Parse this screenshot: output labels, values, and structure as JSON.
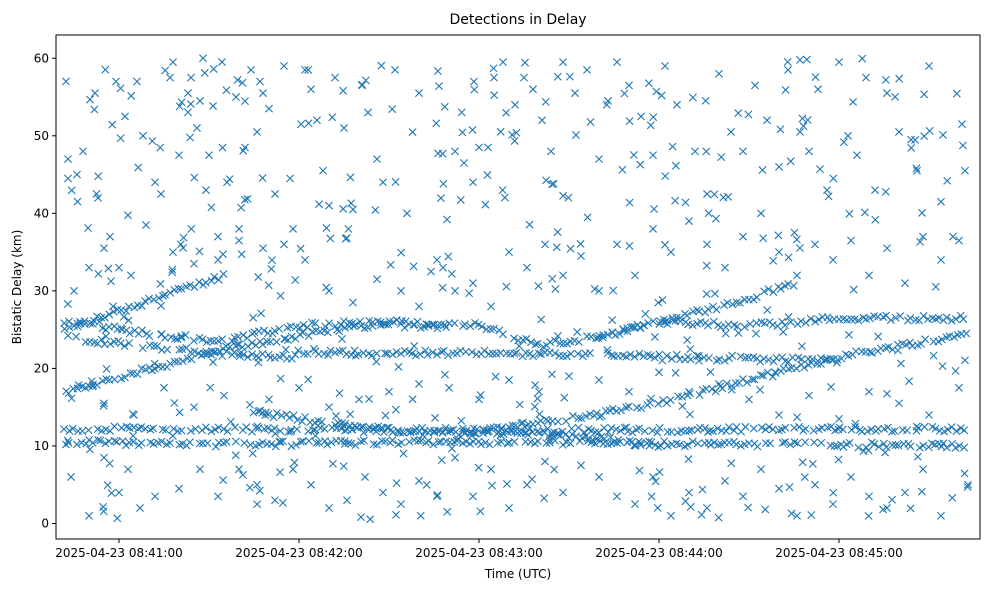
{
  "chart_data": {
    "type": "scatter",
    "title": "Detections in Delay",
    "xlabel": "Time (UTC)",
    "ylabel": "Bistatic Delay (km)",
    "marker": "x",
    "color": "#1f77b4",
    "grid": false,
    "x_tick_labels": [
      "2025-04-23 08:41:00",
      "2025-04-23 08:42:00",
      "2025-04-23 08:43:00",
      "2025-04-23 08:44:00",
      "2025-04-23 08:45:00"
    ],
    "y_tick_labels": [
      "0",
      "10",
      "20",
      "30",
      "40",
      "50",
      "60"
    ],
    "xlim": [
      "2025-04-23 08:40:39",
      "2025-04-23 08:45:47"
    ],
    "ylim": [
      -2,
      63
    ],
    "x_data_range": [
      "2025-04-23 08:40:42",
      "2025-04-23 08:45:43"
    ],
    "tracks": [
      {
        "description": "rising track",
        "points": [
          [
            "2025-04-23 08:40:42",
            25.0
          ],
          [
            "2025-04-23 08:41:35",
            32.0
          ]
        ]
      },
      {
        "description": "rising track",
        "points": [
          [
            "2025-04-23 08:40:42",
            17.0
          ],
          [
            "2025-04-23 08:41:35",
            22.5
          ],
          [
            "2025-04-23 08:42:20",
            25.5
          ],
          [
            "2025-04-23 08:42:50",
            25.5
          ]
        ]
      },
      {
        "description": "rising track",
        "points": [
          [
            "2025-04-23 08:42:55",
            11.7
          ],
          [
            "2025-04-23 08:43:30",
            13.5
          ],
          [
            "2025-04-23 08:44:00",
            15.5
          ],
          [
            "2025-04-23 08:44:30",
            18.5
          ],
          [
            "2025-04-23 08:45:00",
            21.5
          ],
          [
            "2025-04-23 08:45:43",
            24.5
          ]
        ]
      },
      {
        "description": "descending track",
        "points": [
          [
            "2025-04-23 08:40:42",
            24.0
          ],
          [
            "2025-04-23 08:41:30",
            22.0
          ],
          [
            "2025-04-23 08:42:00",
            21.5
          ]
        ]
      },
      {
        "description": "descending track",
        "points": [
          [
            "2025-04-23 08:41:42",
            14.5
          ],
          [
            "2025-04-23 08:42:10",
            13.0
          ],
          [
            "2025-04-23 08:42:40",
            11.7
          ],
          [
            "2025-04-23 08:43:15",
            11.7
          ],
          [
            "2025-04-23 08:43:40",
            11.0
          ],
          [
            "2025-04-23 08:44:00",
            10.0
          ]
        ]
      },
      {
        "description": "wavy band",
        "points": [
          [
            "2025-04-23 08:40:42",
            26.0
          ],
          [
            "2025-04-23 08:41:10",
            24.5
          ],
          [
            "2025-04-23 08:41:35",
            23.5
          ],
          [
            "2025-04-23 08:42:00",
            25.5
          ],
          [
            "2025-04-23 08:42:30",
            26.0
          ],
          [
            "2025-04-23 08:43:00",
            25.5
          ],
          [
            "2025-04-23 08:43:20",
            23.0
          ],
          [
            "2025-04-23 08:43:40",
            24.0
          ],
          [
            "2025-04-23 08:44:00",
            26.0
          ],
          [
            "2025-04-23 08:44:30",
            25.5
          ],
          [
            "2025-04-23 08:45:00",
            26.5
          ],
          [
            "2025-04-23 08:45:43",
            26.5
          ]
        ]
      },
      {
        "description": "rising track",
        "points": [
          [
            "2025-04-23 08:43:40",
            24.0
          ],
          [
            "2025-04-23 08:44:00",
            26.0
          ],
          [
            "2025-04-23 08:44:30",
            29.0
          ],
          [
            "2025-04-23 08:44:45",
            31.0
          ]
        ]
      },
      {
        "description": "band near 12 km",
        "points": [
          [
            "2025-04-23 08:40:42",
            12.2
          ],
          [
            "2025-04-23 08:41:30",
            12.2
          ],
          [
            "2025-04-23 08:43:00",
            12.0
          ],
          [
            "2025-04-23 08:45:43",
            12.2
          ]
        ]
      },
      {
        "description": "band near 10.5 km",
        "points": [
          [
            "2025-04-23 08:40:42",
            10.5
          ],
          [
            "2025-04-23 08:41:30",
            10.2
          ],
          [
            "2025-04-23 08:43:00",
            10.5
          ],
          [
            "2025-04-23 08:45:43",
            10.0
          ]
        ]
      },
      {
        "description": "band near 22 km",
        "points": [
          [
            "2025-04-23 08:42:00",
            22.0
          ],
          [
            "2025-04-23 08:43:00",
            22.0
          ],
          [
            "2025-04-23 08:44:00",
            21.5
          ],
          [
            "2025-04-23 08:45:00",
            21.0
          ]
        ]
      }
    ],
    "scattered_points": [
      [
        "2025-04-23 08:40:43",
        47
      ],
      [
        "2025-04-23 08:40:43",
        44.5
      ],
      [
        "2025-04-23 08:40:46",
        45
      ],
      [
        "2025-04-23 08:40:48",
        48
      ],
      [
        "2025-04-23 08:40:52",
        55.5
      ],
      [
        "2025-04-23 08:40:53",
        42
      ],
      [
        "2025-04-23 08:40:55",
        35.5
      ],
      [
        "2025-04-23 08:40:57",
        37
      ],
      [
        "2025-04-23 08:40:59",
        57
      ],
      [
        "2025-04-23 08:41:00",
        33
      ],
      [
        "2025-04-23 08:41:02",
        52.5
      ],
      [
        "2025-04-23 08:41:06",
        57
      ],
      [
        "2025-04-23 08:41:08",
        50
      ],
      [
        "2025-04-23 08:41:09",
        38.5
      ],
      [
        "2025-04-23 08:41:12",
        44
      ],
      [
        "2025-04-23 08:41:14",
        42.5
      ],
      [
        "2025-04-23 08:41:17",
        57.5
      ],
      [
        "2025-04-23 08:41:18",
        59.5
      ],
      [
        "2025-04-23 08:41:20",
        47.5
      ],
      [
        "2025-04-23 08:41:23",
        55.5
      ],
      [
        "2025-04-23 08:41:24",
        57.5
      ],
      [
        "2025-04-23 08:41:26",
        51
      ],
      [
        "2025-04-23 08:41:27",
        54.5
      ],
      [
        "2025-04-23 08:41:28",
        60
      ],
      [
        "2025-04-23 08:41:29",
        43
      ],
      [
        "2025-04-23 08:41:30",
        47.5
      ],
      [
        "2025-04-23 08:41:33",
        37
      ],
      [
        "2025-04-23 08:41:36",
        44
      ],
      [
        "2025-04-23 08:41:39",
        55
      ],
      [
        "2025-04-23 08:41:40",
        36.5
      ],
      [
        "2025-04-23 08:41:42",
        48.5
      ],
      [
        "2025-04-23 08:41:44",
        58.5
      ],
      [
        "2025-04-23 08:41:46",
        50.5
      ],
      [
        "2025-04-23 08:41:47",
        57
      ],
      [
        "2025-04-23 08:41:48",
        55.5
      ],
      [
        "2025-04-23 08:41:50",
        53.5
      ],
      [
        "2025-04-23 08:41:52",
        42.5
      ],
      [
        "2025-04-23 08:41:55",
        59
      ],
      [
        "2025-04-23 08:41:57",
        44.5
      ],
      [
        "2025-04-23 08:41:58",
        38
      ],
      [
        "2025-04-23 08:42:02",
        58.5
      ],
      [
        "2025-04-23 08:42:04",
        56
      ],
      [
        "2025-04-23 08:42:06",
        52
      ],
      [
        "2025-04-23 08:42:08",
        45.5
      ],
      [
        "2025-04-23 08:42:10",
        41
      ],
      [
        "2025-04-23 08:42:12",
        57.5
      ],
      [
        "2025-04-23 08:42:15",
        51
      ],
      [
        "2025-04-23 08:42:18",
        40.5
      ],
      [
        "2025-04-23 08:42:21",
        56.5
      ],
      [
        "2025-04-23 08:42:23",
        53
      ],
      [
        "2025-04-23 08:42:26",
        47
      ],
      [
        "2025-04-23 08:42:28",
        44
      ],
      [
        "2025-04-23 08:42:32",
        58.5
      ],
      [
        "2025-04-23 08:42:36",
        40
      ],
      [
        "2025-04-23 08:42:40",
        55.5
      ],
      [
        "2025-04-23 08:42:44",
        32.5
      ],
      [
        "2025-04-23 08:42:48",
        33
      ],
      [
        "2025-04-23 08:42:52",
        48
      ],
      [
        "2025-04-23 08:42:55",
        46.5
      ],
      [
        "2025-04-23 08:42:58",
        44
      ],
      [
        "2025-04-23 08:43:00",
        48.5
      ],
      [
        "2025-04-23 08:43:03",
        48.5
      ],
      [
        "2025-04-23 08:43:05",
        57.5
      ],
      [
        "2025-04-23 08:43:08",
        59.5
      ],
      [
        "2025-04-23 08:43:12",
        54
      ],
      [
        "2025-04-23 08:43:15",
        57.5
      ],
      [
        "2025-04-23 08:43:18",
        56
      ],
      [
        "2025-04-23 08:43:21",
        52
      ],
      [
        "2025-04-23 08:43:24",
        48
      ],
      [
        "2025-04-23 08:43:28",
        59.5
      ],
      [
        "2025-04-23 08:43:32",
        55.5
      ],
      [
        "2025-04-23 08:43:36",
        58.5
      ],
      [
        "2025-04-23 08:43:40",
        47
      ],
      [
        "2025-04-23 08:43:43",
        54.5
      ],
      [
        "2025-04-23 08:43:46",
        59.5
      ],
      [
        "2025-04-23 08:43:50",
        56.5
      ],
      [
        "2025-04-23 08:43:54",
        52.5
      ],
      [
        "2025-04-23 08:43:58",
        47.5
      ],
      [
        "2025-04-23 08:44:02",
        59
      ],
      [
        "2025-04-23 08:44:06",
        54
      ],
      [
        "2025-04-23 08:44:12",
        48
      ],
      [
        "2025-04-23 08:44:16",
        42.5
      ],
      [
        "2025-04-23 08:44:20",
        58
      ],
      [
        "2025-04-23 08:44:24",
        50.5
      ],
      [
        "2025-04-23 08:44:28",
        48
      ],
      [
        "2025-04-23 08:44:32",
        56.5
      ],
      [
        "2025-04-23 08:44:36",
        52
      ],
      [
        "2025-04-23 08:44:40",
        46
      ],
      [
        "2025-04-23 08:44:43",
        58.5
      ],
      [
        "2025-04-23 08:44:47",
        50.5
      ],
      [
        "2025-04-23 08:44:50",
        48
      ],
      [
        "2025-04-23 08:44:53",
        56
      ],
      [
        "2025-04-23 08:44:56",
        43
      ],
      [
        "2025-04-23 08:45:00",
        59.5
      ],
      [
        "2025-04-23 08:45:03",
        50
      ],
      [
        "2025-04-23 08:45:06",
        47.5
      ],
      [
        "2025-04-23 08:45:09",
        57.5
      ],
      [
        "2025-04-23 08:45:12",
        43
      ],
      [
        "2025-04-23 08:45:16",
        55.5
      ],
      [
        "2025-04-23 08:45:20",
        50.5
      ],
      [
        "2025-04-23 08:45:24",
        49.5
      ],
      [
        "2025-04-23 08:45:26",
        45.5
      ],
      [
        "2025-04-23 08:45:30",
        59
      ],
      [
        "2025-04-23 08:45:34",
        41.5
      ],
      [
        "2025-04-23 08:45:38",
        37
      ],
      [
        "2025-04-23 08:45:41",
        51.5
      ],
      [
        "2025-04-23 08:45:42",
        45.5
      ],
      [
        "2025-04-23 08:40:44",
        6
      ],
      [
        "2025-04-23 08:40:50",
        1
      ],
      [
        "2025-04-23 08:40:55",
        8.5
      ],
      [
        "2025-04-23 08:41:00",
        4
      ],
      [
        "2025-04-23 08:41:03",
        7
      ],
      [
        "2025-04-23 08:41:07",
        2
      ],
      [
        "2025-04-23 08:41:12",
        3.5
      ],
      [
        "2025-04-23 08:41:20",
        4.5
      ],
      [
        "2025-04-23 08:41:27",
        7
      ],
      [
        "2025-04-23 08:41:33",
        3.5
      ],
      [
        "2025-04-23 08:41:40",
        7
      ],
      [
        "2025-04-23 08:41:46",
        5
      ],
      [
        "2025-04-23 08:41:52",
        3
      ],
      [
        "2025-04-23 08:41:58",
        7
      ],
      [
        "2025-04-23 08:42:04",
        5
      ],
      [
        "2025-04-23 08:42:10",
        2
      ],
      [
        "2025-04-23 08:42:16",
        3
      ],
      [
        "2025-04-23 08:42:22",
        6
      ],
      [
        "2025-04-23 08:42:28",
        4
      ],
      [
        "2025-04-23 08:42:34",
        2.5
      ],
      [
        "2025-04-23 08:42:40",
        5.5
      ],
      [
        "2025-04-23 08:42:46",
        3.5
      ],
      [
        "2025-04-23 08:42:52",
        8.5
      ],
      [
        "2025-04-23 08:42:58",
        3.5
      ],
      [
        "2025-04-23 08:43:04",
        7
      ],
      [
        "2025-04-23 08:43:10",
        2
      ],
      [
        "2025-04-23 08:43:16",
        5
      ],
      [
        "2025-04-23 08:43:22",
        8
      ],
      [
        "2025-04-23 08:43:28",
        4
      ],
      [
        "2025-04-23 08:43:34",
        7.5
      ],
      [
        "2025-04-23 08:43:40",
        6
      ],
      [
        "2025-04-23 08:43:46",
        3.5
      ],
      [
        "2025-04-23 08:43:52",
        2.5
      ],
      [
        "2025-04-23 08:43:58",
        6
      ],
      [
        "2025-04-23 08:44:04",
        1
      ],
      [
        "2025-04-23 08:44:10",
        4
      ],
      [
        "2025-04-23 08:44:16",
        2
      ],
      [
        "2025-04-23 08:44:22",
        5.5
      ],
      [
        "2025-04-23 08:44:28",
        3.5
      ],
      [
        "2025-04-23 08:44:34",
        7
      ],
      [
        "2025-04-23 08:44:40",
        4.5
      ],
      [
        "2025-04-23 08:44:46",
        1
      ],
      [
        "2025-04-23 08:44:52",
        5
      ],
      [
        "2025-04-23 08:44:58",
        2.5
      ],
      [
        "2025-04-23 08:45:04",
        6
      ],
      [
        "2025-04-23 08:45:10",
        3.5
      ],
      [
        "2025-04-23 08:45:16",
        2
      ],
      [
        "2025-04-23 08:45:22",
        4
      ],
      [
        "2025-04-23 08:45:28",
        7
      ],
      [
        "2025-04-23 08:45:34",
        1
      ],
      [
        "2025-04-23 08:45:43",
        5
      ],
      [
        "2025-04-23 08:40:45",
        30
      ],
      [
        "2025-04-23 08:40:50",
        33
      ],
      [
        "2025-04-23 08:40:58",
        28
      ],
      [
        "2025-04-23 08:41:04",
        32
      ],
      [
        "2025-04-23 08:41:10",
        29
      ],
      [
        "2025-04-23 08:41:18",
        35
      ],
      [
        "2025-04-23 08:41:25",
        33.5
      ],
      [
        "2025-04-23 08:41:33",
        34
      ],
      [
        "2025-04-23 08:41:40",
        38
      ],
      [
        "2025-04-23 08:41:48",
        35.5
      ],
      [
        "2025-04-23 08:41:55",
        36
      ],
      [
        "2025-04-23 08:42:02",
        34
      ],
      [
        "2025-04-23 08:42:10",
        30
      ],
      [
        "2025-04-23 08:42:18",
        28.5
      ],
      [
        "2025-04-23 08:42:26",
        31.5
      ],
      [
        "2025-04-23 08:42:34",
        30
      ],
      [
        "2025-04-23 08:42:40",
        28
      ],
      [
        "2025-04-23 08:42:46",
        34
      ],
      [
        "2025-04-23 08:42:52",
        30
      ],
      [
        "2025-04-23 08:42:58",
        31
      ],
      [
        "2025-04-23 08:43:04",
        28
      ],
      [
        "2025-04-23 08:43:10",
        35
      ],
      [
        "2025-04-23 08:43:16",
        33
      ],
      [
        "2025-04-23 08:43:22",
        36
      ],
      [
        "2025-04-23 08:43:28",
        32
      ],
      [
        "2025-04-23 08:43:34",
        34.5
      ],
      [
        "2025-04-23 08:43:40",
        30
      ],
      [
        "2025-04-23 08:43:46",
        36
      ],
      [
        "2025-04-23 08:43:52",
        32
      ],
      [
        "2025-04-23 08:43:58",
        38
      ],
      [
        "2025-04-23 08:44:04",
        35
      ],
      [
        "2025-04-23 08:44:10",
        39
      ],
      [
        "2025-04-23 08:44:16",
        36
      ],
      [
        "2025-04-23 08:44:22",
        33
      ],
      [
        "2025-04-23 08:44:28",
        37
      ],
      [
        "2025-04-23 08:44:34",
        40
      ],
      [
        "2025-04-23 08:44:40",
        35
      ],
      [
        "2025-04-23 08:44:46",
        32
      ],
      [
        "2025-04-23 08:44:52",
        36
      ],
      [
        "2025-04-23 08:44:58",
        34
      ],
      [
        "2025-04-23 08:45:04",
        36.5
      ],
      [
        "2025-04-23 08:45:10",
        32
      ],
      [
        "2025-04-23 08:45:16",
        35.5
      ],
      [
        "2025-04-23 08:45:22",
        31
      ],
      [
        "2025-04-23 08:45:28",
        37
      ],
      [
        "2025-04-23 08:45:34",
        34
      ],
      [
        "2025-04-23 08:45:40",
        36.5
      ],
      [
        "2025-04-23 08:40:55",
        15.5
      ],
      [
        "2025-04-23 08:41:05",
        14
      ],
      [
        "2025-04-23 08:41:15",
        17.5
      ],
      [
        "2025-04-23 08:41:25",
        15
      ],
      [
        "2025-04-23 08:41:35",
        16.5
      ],
      [
        "2025-04-23 08:41:50",
        16
      ],
      [
        "2025-04-23 08:42:00",
        17.5
      ],
      [
        "2025-04-23 08:42:10",
        15
      ],
      [
        "2025-04-23 08:42:20",
        16
      ],
      [
        "2025-04-23 08:42:30",
        17
      ],
      [
        "2025-04-23 08:42:40",
        18
      ],
      [
        "2025-04-23 08:42:50",
        17.5
      ],
      [
        "2025-04-23 08:43:00",
        16
      ],
      [
        "2025-04-23 08:43:10",
        18.5
      ],
      [
        "2025-04-23 08:43:20",
        17
      ],
      [
        "2025-04-23 08:43:30",
        19
      ],
      [
        "2025-04-23 08:43:40",
        18.5
      ],
      [
        "2025-04-23 08:43:50",
        17
      ],
      [
        "2025-04-23 08:44:00",
        19.5
      ],
      [
        "2025-04-23 08:44:10",
        17
      ],
      [
        "2025-04-23 08:44:20",
        18
      ],
      [
        "2025-04-23 08:44:30",
        16
      ],
      [
        "2025-04-23 08:44:40",
        14
      ],
      [
        "2025-04-23 08:44:50",
        16.5
      ],
      [
        "2025-04-23 08:45:00",
        13.5
      ],
      [
        "2025-04-23 08:45:10",
        17
      ],
      [
        "2025-04-23 08:45:20",
        15.5
      ],
      [
        "2025-04-23 08:45:30",
        14
      ],
      [
        "2025-04-23 08:45:40",
        17.5
      ]
    ]
  }
}
